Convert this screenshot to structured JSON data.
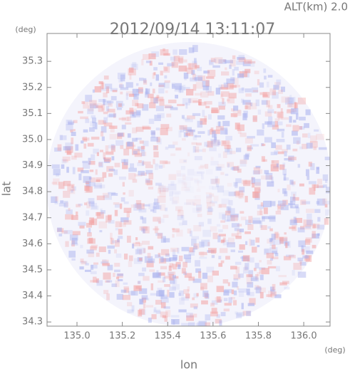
{
  "chart_data": {
    "type": "radar-map",
    "title": "2012/09/14 13:11:07",
    "subtitle": "ALT(km) 2.0",
    "xlabel": "lon",
    "ylabel": "lat",
    "x_unit": "(deg)",
    "y_unit": "(deg)",
    "xlim": [
      134.868,
      136.116
    ],
    "ylim": [
      34.284,
      35.407
    ],
    "xticks": [
      {
        "value": 135.0,
        "label": "135.0"
      },
      135.2,
      135.4,
      135.6,
      135.8,
      {
        "value": 136.0,
        "label": "136.0"
      }
    ],
    "yticks": [
      34.3,
      34.4,
      34.5,
      34.6,
      34.7,
      34.8,
      34.9,
      {
        "value": 35.0,
        "label": "35.0"
      },
      35.1,
      35.2,
      35.3
    ]
  }
}
